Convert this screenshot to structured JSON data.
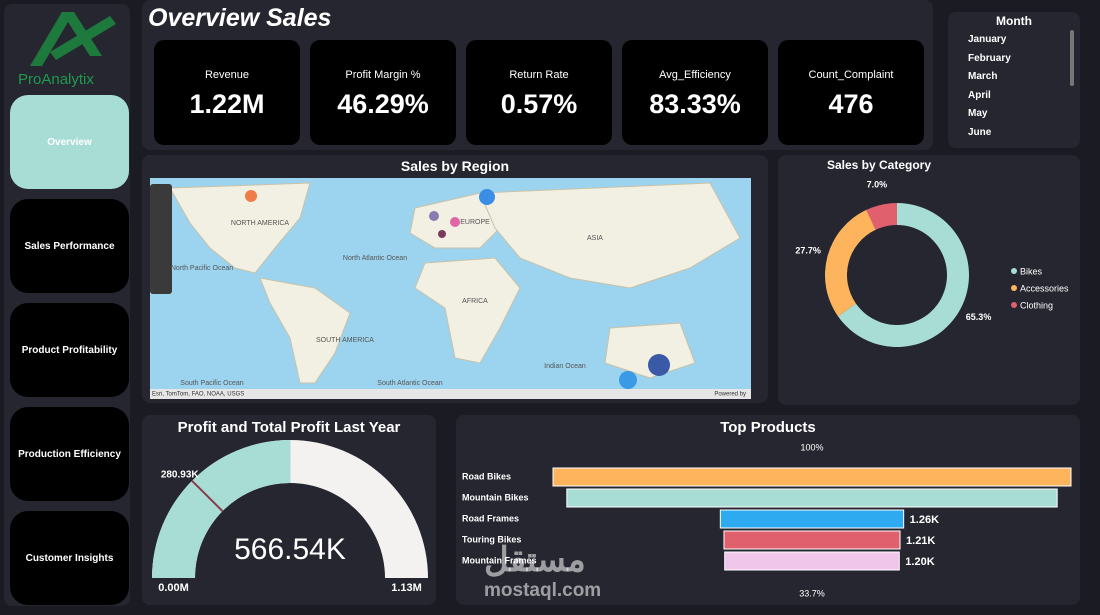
{
  "logo": {
    "text": "ProAnalytix"
  },
  "nav": [
    "Overview",
    "Sales Performance",
    "Product Profitability",
    "Production Efficiency",
    "Customer Insights"
  ],
  "header": {
    "title": "Overview Sales"
  },
  "kpis": [
    {
      "label": "Revenue",
      "value": "1.22M"
    },
    {
      "label": "Profit Margin %",
      "value": "46.29%"
    },
    {
      "label": "Return Rate",
      "value": "0.57%"
    },
    {
      "label": "Avg_Efficiency",
      "value": "83.33%"
    },
    {
      "label": "Count_Complaint",
      "value": "476"
    }
  ],
  "month_filter": {
    "title": "Month",
    "items": [
      "January",
      "February",
      "March",
      "April",
      "May",
      "June"
    ]
  },
  "map": {
    "title": "Sales by Region",
    "labels": [
      "NORTH AMERICA",
      "EUROPE",
      "ASIA",
      "AFRICA",
      "SOUTH AMERICA",
      "North Atlantic Ocean",
      "North Pacific Ocean",
      "Indian Ocean",
      "South Atlantic Ocean",
      "South Pacific Ocean"
    ],
    "attribution": "Esri, TomTom, FAO, NOAA, USGS",
    "powered_by": "Powered by"
  },
  "chart_data": [
    {
      "type": "pie",
      "title": "Sales by Category",
      "donut": true,
      "legend": "right",
      "categories": [
        "Bikes",
        "Accessories",
        "Clothing"
      ],
      "values": [
        65.3,
        27.7,
        7.0
      ],
      "value_labels": [
        "65.3%",
        "27.7%",
        "7.0%"
      ],
      "colors": [
        "#a8ddd6",
        "#fdb45c",
        "#e0606e"
      ]
    },
    {
      "type": "gauge",
      "title": "Profit and Total Profit Last Year",
      "values": [
        566540
      ],
      "value_labels": [
        "566.54K"
      ],
      "color": "#a8ddd6",
      "ylim": [
        0,
        1130000
      ],
      "yticks": [
        {
          "value": 0,
          "label": "0.00M"
        },
        {
          "value": 1130000,
          "label": "1.13M"
        }
      ],
      "target": {
        "value": 280930,
        "label": "280.93K"
      }
    },
    {
      "type": "funnel",
      "title": "Top Products",
      "categories": [
        "Road Bikes",
        "Mountain Bikes",
        "Road Frames",
        "Touring Bikes",
        "Mountain Frames"
      ],
      "values": [
        3560,
        3370,
        1260,
        1210,
        1200
      ],
      "value_labels": [
        null,
        null,
        "1.26K",
        "1.21K",
        "1.20K"
      ],
      "colors": [
        "#fdb45c",
        "#a8ddd6",
        "#2eaaf0",
        "#e0606e",
        "#f0c6ea"
      ],
      "percent_labels": [
        {
          "value": 100,
          "label": "100%"
        },
        {
          "value": 33.7,
          "label": "33.7%"
        }
      ]
    }
  ],
  "watermark": {
    "arabic": "مستقل",
    "latin": "mostaql.com"
  }
}
